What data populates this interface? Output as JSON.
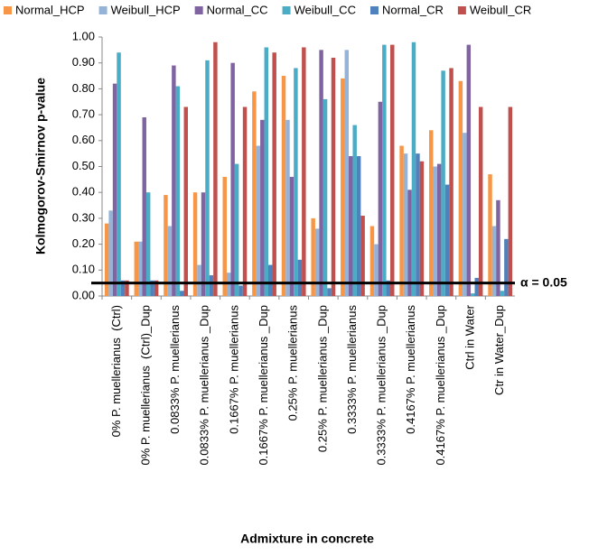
{
  "chart_data": {
    "type": "bar",
    "x_label": "Admixture in concrete",
    "y_label": "Kolmogorov-Smirnov p-value",
    "categories": [
      "0% P. muellerianus  (Ctrl)",
      "0% P. muellerianus  (Ctrl)_Dup",
      "0.0833% P. muellerianus",
      "0.0833% P. muellerianus _Dup",
      "0.1667% P. muellerianus",
      "0.1667% P. muellerianus _Dup",
      "0.25% P. muellerianus",
      "0.25% P. muellerianus _Dup",
      "0.3333% P. muellerianus",
      "0.3333% P. muellerianus _Dup",
      "0.4167% P. muellerianus",
      "0.4167% P. muellerianus _Dup",
      "Ctrl in Water",
      "Ctr in Water_Dup"
    ],
    "series": [
      {
        "name": "Normal_HCP",
        "color": "#f79646",
        "values": [
          0.28,
          0.21,
          0.39,
          0.4,
          0.46,
          0.79,
          0.85,
          0.3,
          0.84,
          0.27,
          0.58,
          0.64,
          0.83,
          0.47
        ]
      },
      {
        "name": "Weibull_HCP",
        "color": "#95b3d7",
        "values": [
          0.33,
          0.21,
          0.27,
          0.12,
          0.09,
          0.58,
          0.68,
          0.26,
          0.95,
          0.2,
          0.55,
          0.5,
          0.63,
          0.27
        ]
      },
      {
        "name": "Normal_CC",
        "color": "#8064a2",
        "values": [
          0.82,
          0.69,
          0.89,
          0.4,
          0.9,
          0.68,
          0.46,
          0.95,
          0.54,
          0.75,
          0.41,
          0.51,
          0.97,
          0.37
        ]
      },
      {
        "name": "Weibull_CC",
        "color": "#4bacc6",
        "values": [
          0.94,
          0.4,
          0.81,
          0.91,
          0.51,
          0.96,
          0.88,
          0.76,
          0.66,
          0.97,
          0.98,
          0.87,
          0.01,
          0.02
        ]
      },
      {
        "name": "Normal_CR",
        "color": "#4f81bd",
        "values": [
          0.06,
          0.06,
          0.02,
          0.08,
          0.04,
          0.12,
          0.14,
          0.03,
          0.54,
          0.06,
          0.55,
          0.43,
          0.07,
          0.22
        ]
      },
      {
        "name": "Weibull_CR",
        "color": "#c0504d",
        "values": [
          0.06,
          0.06,
          0.73,
          0.98,
          0.73,
          0.94,
          0.96,
          0.92,
          0.31,
          0.97,
          0.52,
          0.88,
          0.73,
          0.73
        ]
      }
    ],
    "ylim": [
      0,
      1
    ],
    "yticks": [
      {
        "value": 0,
        "label": "0.00"
      },
      {
        "value": 0.1,
        "label": "0.10"
      },
      {
        "value": 0.2,
        "label": "0.20"
      },
      {
        "value": 0.3,
        "label": "0.30"
      },
      {
        "value": 0.4,
        "label": "0.40"
      },
      {
        "value": 0.5,
        "label": "0.50"
      },
      {
        "value": 0.6,
        "label": "0.60"
      },
      {
        "value": 0.7,
        "label": "0.70"
      },
      {
        "value": 0.8,
        "label": "0.80"
      },
      {
        "value": 0.9,
        "label": "0.90"
      },
      {
        "value": 1,
        "label": "1.00"
      }
    ],
    "threshold": {
      "value": 0.05,
      "label": "α = 0.05"
    },
    "legend": "top",
    "grid": false
  }
}
